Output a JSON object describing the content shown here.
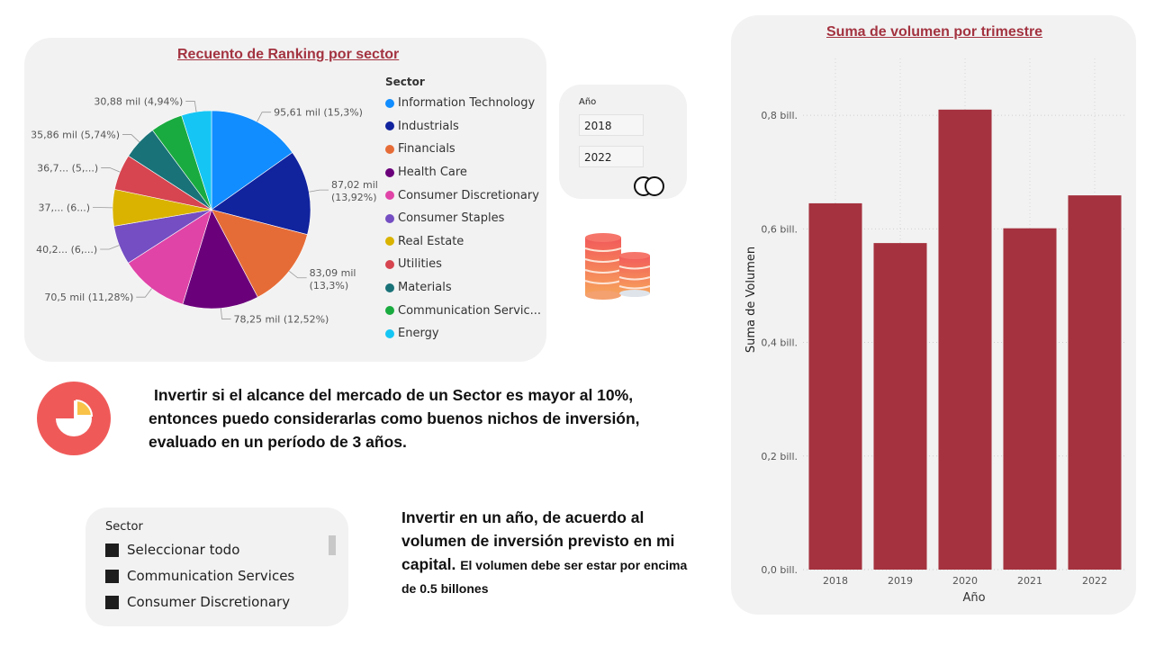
{
  "pie_visual": {
    "title": "Recuento de Ranking por sector",
    "legend_title": "Sector",
    "chart_data": {
      "type": "pie",
      "title": "Recuento de Ranking por sector",
      "legend_title": "Sector",
      "slices": [
        {
          "name": "Information Technology",
          "label": "95,61 mil (15,3%)",
          "value": 95610,
          "percent": 15.3,
          "color": "#118dff"
        },
        {
          "name": "Industrials",
          "label": "87,02 mil (13,92%)",
          "value": 87020,
          "percent": 13.92,
          "color": "#12239e"
        },
        {
          "name": "Financials",
          "label": "83,09 mil (13,3%)",
          "value": 83090,
          "percent": 13.3,
          "color": "#e66c37"
        },
        {
          "name": "Health Care",
          "label": "78,25 mil (12,52%)",
          "value": 78250,
          "percent": 12.52,
          "color": "#6b007b"
        },
        {
          "name": "Consumer Discretionary",
          "label": "70,5 mil (11,28%)",
          "value": 70500,
          "percent": 11.28,
          "color": "#e044a7"
        },
        {
          "name": "Consumer Staples",
          "label": "40,2... (6,...)",
          "value": 40200,
          "percent": 6.43,
          "color": "#744ec2"
        },
        {
          "name": "Real Estate",
          "label": "37,... (6...)",
          "value": 37500,
          "percent": 6.0,
          "color": "#d9b300"
        },
        {
          "name": "Utilities",
          "label": "36,7... (5,...)",
          "value": 36700,
          "percent": 5.87,
          "color": "#d64550"
        },
        {
          "name": "Materials",
          "label": "35,86 mil (5,74%)",
          "value": 35860,
          "percent": 5.74,
          "color": "#197278"
        },
        {
          "name": "Communication Servic...",
          "label": "",
          "value": 33000,
          "percent": 5.28,
          "color": "#1aab40"
        },
        {
          "name": "Energy",
          "label": "30,88 mil (4,94%)",
          "value": 30880,
          "percent": 4.94,
          "color": "#15c6f4"
        }
      ]
    }
  },
  "year_slicer": {
    "label": "Año",
    "from": "2018",
    "to": "2022"
  },
  "insights": {
    "main_lines": [
      "Invertir si el alcance del mercado de un Sector es mayor al 10%,",
      "entonces puedo considerarlas como buenos nichos de inversión,",
      "evaluado en un período de 3 años."
    ],
    "secondary_main": "Invertir en un año, de acuerdo al volumen de inversión previsto en mi capital.",
    "secondary_small": "El volumen debe ser estar por encima de 0.5 billones"
  },
  "sector_slicer": {
    "title": "Sector",
    "items": [
      "Seleccionar todo",
      "Communication Services",
      "Consumer Discretionary"
    ]
  },
  "bar_visual": {
    "title": "Suma de volumen por trimestre",
    "chart_data": {
      "type": "bar",
      "title": "Suma de volumen por trimestre",
      "xlabel": "Año",
      "ylabel": "Suma de Volumen",
      "categories": [
        "2018",
        "2019",
        "2020",
        "2021",
        "2022"
      ],
      "values": [
        0.645,
        0.575,
        0.81,
        0.601,
        0.659
      ],
      "value_unit": "bill.",
      "yticks": [
        "0,0 bill.",
        "0,2 bill.",
        "0,4 bill.",
        "0,6 bill.",
        "0,8 bill."
      ],
      "ylim": [
        0,
        0.8
      ],
      "grid": true,
      "bar_color": "#a5323f"
    }
  },
  "icons": {
    "toggle": "toggle-circles-icon",
    "coins": "coins-stack-icon",
    "pie": "pie-chart-icon"
  }
}
